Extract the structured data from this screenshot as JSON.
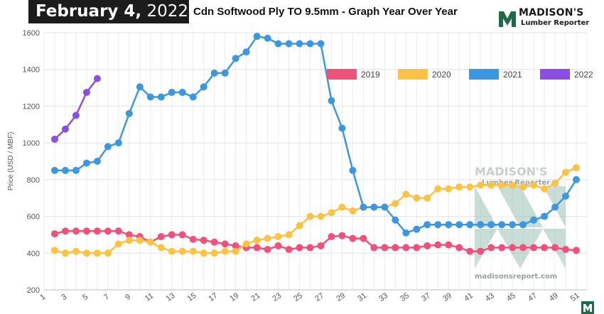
{
  "header": {
    "date_bold": "February 4,",
    "date_year": " 2022",
    "title": "Cdn Softwood Ply TO 9.5mm - Graph Year Over Year"
  },
  "logo": {
    "name": "MADISON'S",
    "sub": "Lumber Reporter",
    "icon": "madisons-logo-icon",
    "color": "#1e6b4a"
  },
  "watermark": {
    "name": "MADISON'S",
    "sub": "Lumber Reporter",
    "url": "madisonsreport.com"
  },
  "chart_data": {
    "type": "line",
    "title": "",
    "xlabel": "",
    "ylabel": "Price (USD / MBF)",
    "xlim": [
      1,
      52
    ],
    "ylim": [
      200,
      1600
    ],
    "yticks": [
      200,
      400,
      600,
      800,
      1000,
      1200,
      1400,
      1600
    ],
    "xticks": [
      1,
      3,
      5,
      7,
      9,
      11,
      13,
      15,
      17,
      19,
      21,
      23,
      25,
      27,
      29,
      31,
      33,
      35,
      37,
      39,
      41,
      43,
      45,
      47,
      49,
      51
    ],
    "grid": true,
    "legend_position": "top-right",
    "series": [
      {
        "name": "2019",
        "color": "#f0507a",
        "x": [
          2,
          3,
          4,
          5,
          6,
          7,
          8,
          9,
          10,
          11,
          12,
          13,
          14,
          15,
          16,
          17,
          18,
          19,
          20,
          21,
          22,
          23,
          24,
          25,
          26,
          27,
          28,
          29,
          30,
          31,
          32,
          33,
          34,
          35,
          36,
          37,
          38,
          39,
          40,
          41,
          42,
          43,
          44,
          45,
          46,
          47,
          48,
          49,
          50,
          51
        ],
        "values": [
          505,
          520,
          520,
          520,
          520,
          520,
          520,
          500,
          490,
          460,
          490,
          500,
          500,
          475,
          470,
          460,
          450,
          440,
          430,
          430,
          420,
          440,
          420,
          430,
          430,
          440,
          490,
          495,
          480,
          480,
          430,
          430,
          430,
          430,
          430,
          440,
          445,
          445,
          430,
          410,
          410,
          430,
          430,
          430,
          430,
          430,
          430,
          430,
          420,
          415
        ]
      },
      {
        "name": "2020",
        "color": "#fbc343",
        "x": [
          2,
          3,
          4,
          5,
          6,
          7,
          8,
          9,
          10,
          11,
          12,
          13,
          14,
          15,
          16,
          17,
          18,
          19,
          20,
          21,
          22,
          23,
          24,
          25,
          26,
          27,
          28,
          29,
          30,
          31,
          32,
          33,
          34,
          35,
          36,
          37,
          38,
          39,
          40,
          41,
          42,
          43,
          44,
          45,
          46,
          47,
          48,
          49,
          50,
          51
        ],
        "values": [
          415,
          400,
          410,
          400,
          400,
          400,
          450,
          470,
          470,
          460,
          430,
          410,
          410,
          410,
          400,
          400,
          410,
          410,
          450,
          470,
          480,
          490,
          500,
          550,
          600,
          600,
          620,
          650,
          630,
          650,
          650,
          650,
          670,
          720,
          700,
          700,
          750,
          750,
          760,
          760,
          770,
          770,
          770,
          770,
          760,
          770,
          750,
          780,
          840,
          865
        ]
      },
      {
        "name": "2021",
        "color": "#3b98e0",
        "x": [
          2,
          3,
          4,
          5,
          6,
          7,
          8,
          9,
          10,
          11,
          12,
          13,
          14,
          15,
          16,
          17,
          18,
          19,
          20,
          21,
          22,
          23,
          24,
          25,
          26,
          27,
          28,
          29,
          30,
          31,
          32,
          33,
          34,
          35,
          36,
          37,
          38,
          39,
          40,
          41,
          42,
          43,
          44,
          45,
          46,
          47,
          48,
          49,
          50,
          51
        ],
        "values": [
          850,
          850,
          850,
          890,
          900,
          980,
          1000,
          1160,
          1305,
          1250,
          1250,
          1275,
          1275,
          1250,
          1305,
          1380,
          1380,
          1460,
          1495,
          1580,
          1570,
          1540,
          1540,
          1540,
          1540,
          1540,
          1230,
          1080,
          850,
          650,
          650,
          650,
          580,
          510,
          530,
          555,
          555,
          555,
          555,
          555,
          555,
          555,
          555,
          555,
          555,
          580,
          600,
          650,
          710,
          800
        ]
      },
      {
        "name": "2022",
        "color": "#8a4fe0",
        "x": [
          2,
          3,
          4,
          5,
          6
        ],
        "values": [
          1020,
          1075,
          1150,
          1275,
          1350
        ]
      }
    ]
  }
}
